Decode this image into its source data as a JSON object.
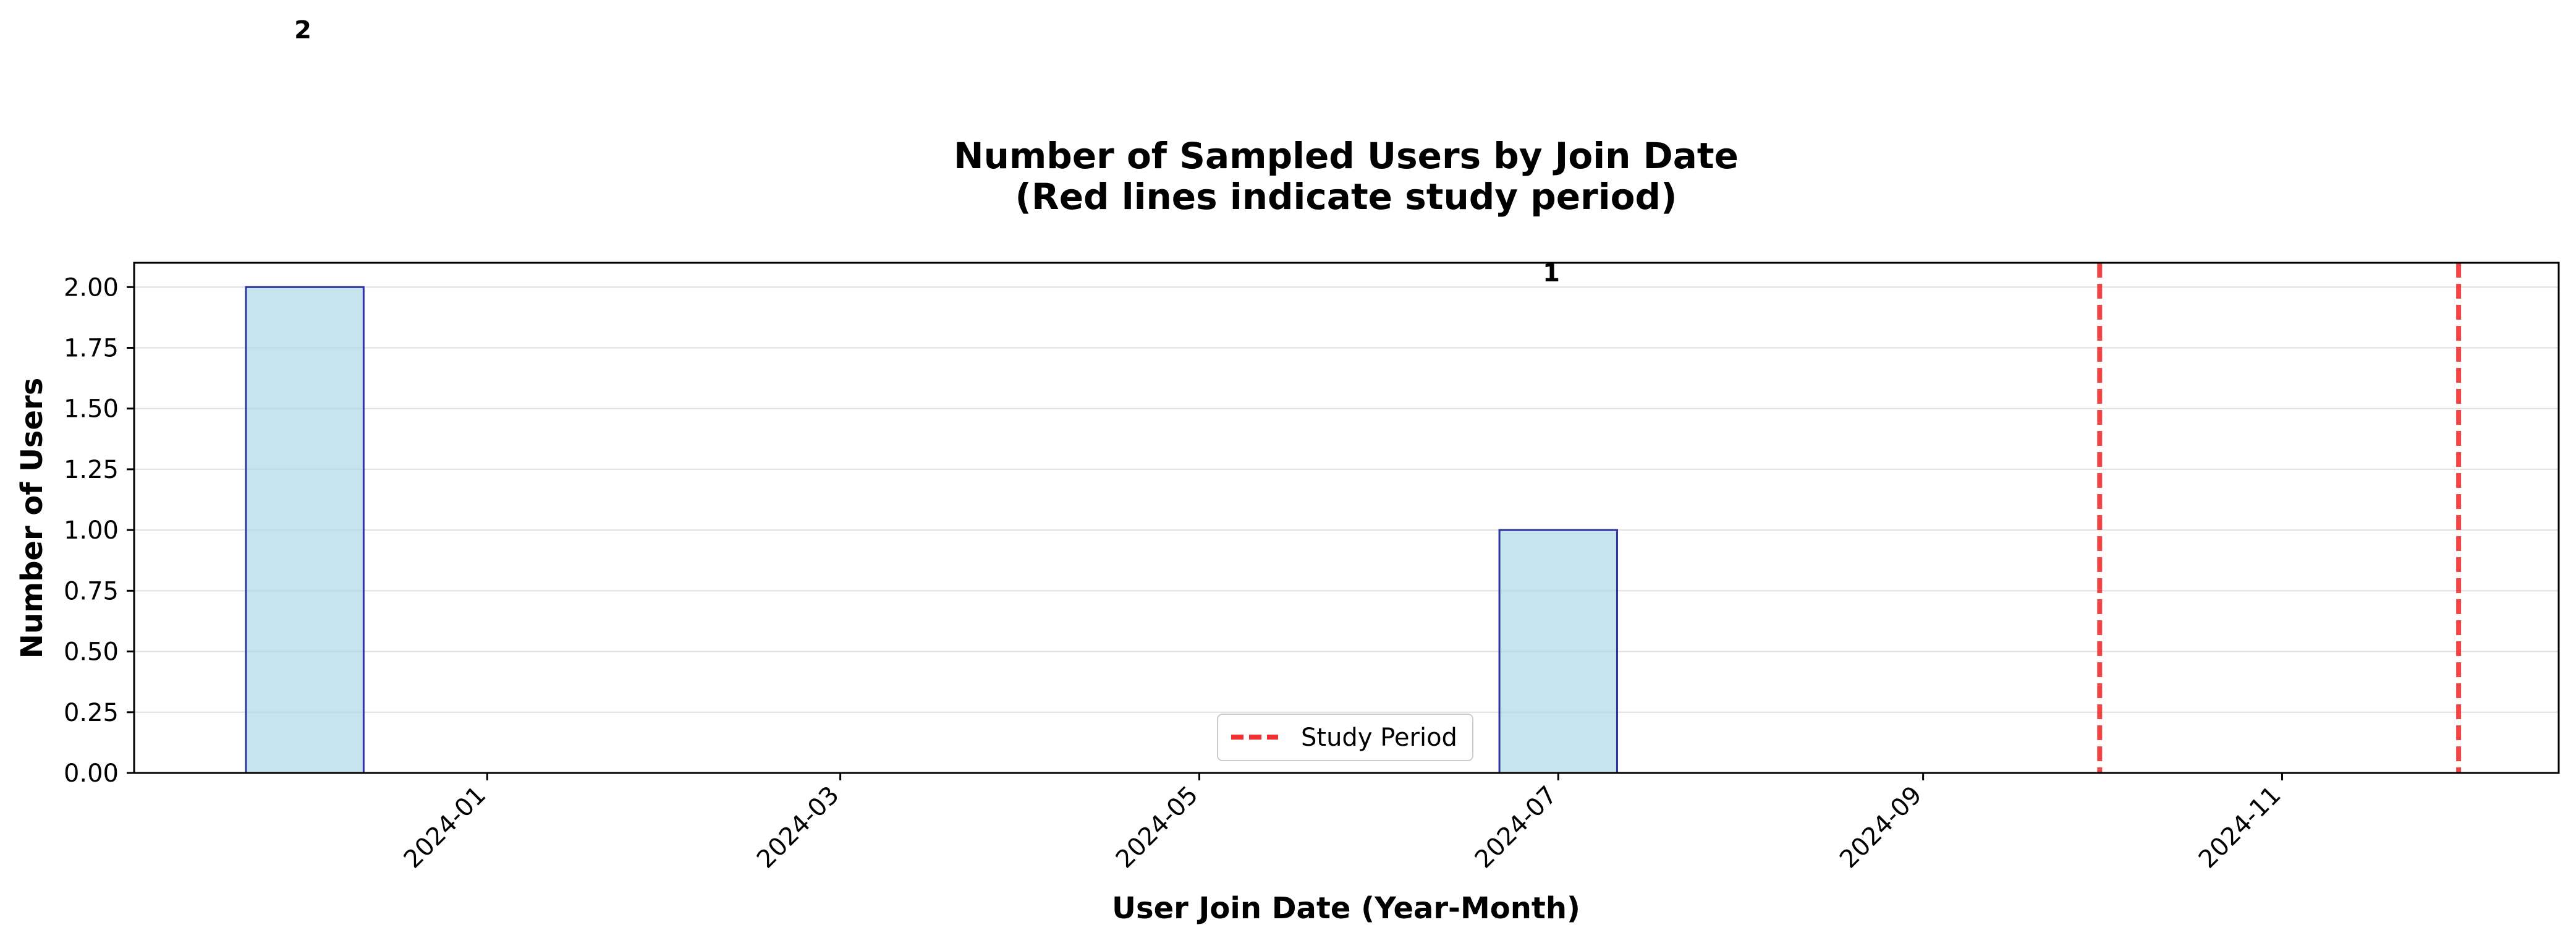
{
  "chart_data": {
    "type": "bar",
    "title_lines": [
      "Number of Sampled Users by Join Date",
      "(Red lines indicate study period)"
    ],
    "xlabel": "User Join Date (Year-Month)",
    "ylabel": "Number of Users",
    "x_axis_type": "date",
    "xlim": [
      "2023-11-02",
      "2024-12-18"
    ],
    "ylim": [
      0,
      2.1
    ],
    "yticks": [
      0.0,
      0.25,
      0.5,
      0.75,
      1.0,
      1.25,
      1.5,
      1.75,
      2.0
    ],
    "ytick_labels": [
      "0.00",
      "0.25",
      "0.50",
      "0.75",
      "1.00",
      "1.25",
      "1.50",
      "1.75",
      "2.00"
    ],
    "xticks": [
      "2024-01-01",
      "2024-03-01",
      "2024-05-01",
      "2024-07-01",
      "2024-09-01",
      "2024-11-01"
    ],
    "xtick_labels": [
      "2024-01",
      "2024-03",
      "2024-05",
      "2024-07",
      "2024-09",
      "2024-11"
    ],
    "x_tick_rotation": 45,
    "bars": [
      {
        "start": "2023-11-21",
        "end": "2023-12-11",
        "value": 2,
        "label": "2"
      },
      {
        "start": "2024-06-21",
        "end": "2024-07-11",
        "value": 1,
        "label": "1"
      }
    ],
    "reference_lines": [
      {
        "x": "2024-10-01",
        "style": "dashed",
        "color": "#f03030"
      },
      {
        "x": "2024-12-01",
        "style": "dashed",
        "color": "#f03030"
      }
    ],
    "legend": {
      "entries": [
        "Study Period"
      ],
      "position": "lower center"
    },
    "grid": {
      "y": true,
      "x": false
    },
    "colors": {
      "bar_fill": "#add8e6",
      "bar_edge": "#2f34a0",
      "reference_line": "#f03030",
      "grid": "#e0e0e0"
    }
  }
}
